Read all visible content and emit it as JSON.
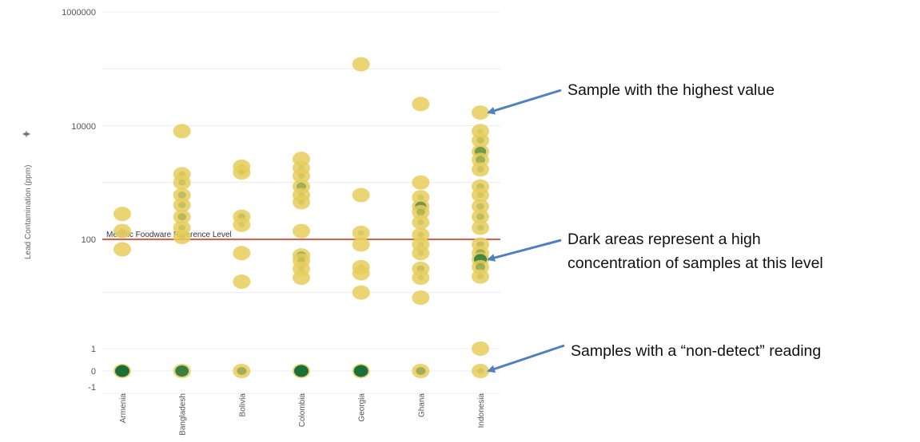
{
  "chart_data": {
    "type": "scatter",
    "ylabel": "Lead Contamination (ppm)",
    "y_scale": "log with separate linear band for -1 to 1",
    "y_ticks_log": [
      "1000000",
      "10000",
      "100"
    ],
    "y_ticks_linear": [
      "1",
      "0",
      "-1"
    ],
    "categories": [
      "Armenia",
      "Bangladesh",
      "Bolivia",
      "Colombia",
      "Georgia",
      "Ghana",
      "Indonesia"
    ],
    "reference_line": {
      "label": "Metallic Foodware Reference Level",
      "value": 100,
      "color": "#e8432a"
    },
    "points": [
      {
        "x": "Armenia",
        "y": 280,
        "density": 0.1
      },
      {
        "x": "Armenia",
        "y": 140,
        "density": 0.15
      },
      {
        "x": "Armenia",
        "y": 65,
        "density": 0.1
      },
      {
        "x": "Armenia",
        "y": 0,
        "density": 1.0
      },
      {
        "x": "Bangladesh",
        "y": 8000,
        "density": 0.1
      },
      {
        "x": "Bangladesh",
        "y": 1400,
        "density": 0.2
      },
      {
        "x": "Bangladesh",
        "y": 1000,
        "density": 0.25
      },
      {
        "x": "Bangladesh",
        "y": 600,
        "density": 0.35
      },
      {
        "x": "Bangladesh",
        "y": 400,
        "density": 0.3
      },
      {
        "x": "Bangladesh",
        "y": 250,
        "density": 0.4
      },
      {
        "x": "Bangladesh",
        "y": 160,
        "density": 0.25
      },
      {
        "x": "Bangladesh",
        "y": 110,
        "density": 0.15
      },
      {
        "x": "Bangladesh",
        "y": 0,
        "density": 0.9
      },
      {
        "x": "Bolivia",
        "y": 1900,
        "density": 0.15
      },
      {
        "x": "Bolivia",
        "y": 1500,
        "density": 0.15
      },
      {
        "x": "Bolivia",
        "y": 250,
        "density": 0.3
      },
      {
        "x": "Bolivia",
        "y": 180,
        "density": 0.15
      },
      {
        "x": "Bolivia",
        "y": 55,
        "density": 0.1
      },
      {
        "x": "Bolivia",
        "y": 16,
        "density": 0.1
      },
      {
        "x": "Bolivia",
        "y": 0,
        "density": 0.5
      },
      {
        "x": "Colombia",
        "y": 2600,
        "density": 0.1
      },
      {
        "x": "Colombia",
        "y": 1800,
        "density": 0.15
      },
      {
        "x": "Colombia",
        "y": 1300,
        "density": 0.2
      },
      {
        "x": "Colombia",
        "y": 850,
        "density": 0.5
      },
      {
        "x": "Colombia",
        "y": 600,
        "density": 0.2
      },
      {
        "x": "Colombia",
        "y": 450,
        "density": 0.15
      },
      {
        "x": "Colombia",
        "y": 140,
        "density": 0.1
      },
      {
        "x": "Colombia",
        "y": 50,
        "density": 0.5
      },
      {
        "x": "Colombia",
        "y": 40,
        "density": 0.3
      },
      {
        "x": "Colombia",
        "y": 28,
        "density": 0.15
      },
      {
        "x": "Colombia",
        "y": 19,
        "density": 0.1
      },
      {
        "x": "Colombia",
        "y": 0,
        "density": 1.0
      },
      {
        "x": "Georgia",
        "y": 120000,
        "density": 0.1
      },
      {
        "x": "Georgia",
        "y": 600,
        "density": 0.1
      },
      {
        "x": "Georgia",
        "y": 130,
        "density": 0.15
      },
      {
        "x": "Georgia",
        "y": 80,
        "density": 0.1
      },
      {
        "x": "Georgia",
        "y": 30,
        "density": 0.15
      },
      {
        "x": "Georgia",
        "y": 23,
        "density": 0.1
      },
      {
        "x": "Georgia",
        "y": 10,
        "density": 0.1
      },
      {
        "x": "Georgia",
        "y": 0,
        "density": 1.0
      },
      {
        "x": "Ghana",
        "y": 24000,
        "density": 0.1
      },
      {
        "x": "Ghana",
        "y": 1000,
        "density": 0.1
      },
      {
        "x": "Ghana",
        "y": 550,
        "density": 0.2
      },
      {
        "x": "Ghana",
        "y": 380,
        "density": 0.7
      },
      {
        "x": "Ghana",
        "y": 300,
        "density": 0.4
      },
      {
        "x": "Ghana",
        "y": 200,
        "density": 0.2
      },
      {
        "x": "Ghana",
        "y": 120,
        "density": 0.2
      },
      {
        "x": "Ghana",
        "y": 80,
        "density": 0.15
      },
      {
        "x": "Ghana",
        "y": 55,
        "density": 0.15
      },
      {
        "x": "Ghana",
        "y": 28,
        "density": 0.3
      },
      {
        "x": "Ghana",
        "y": 19,
        "density": 0.15
      },
      {
        "x": "Ghana",
        "y": 8,
        "density": 0.1
      },
      {
        "x": "Ghana",
        "y": 0,
        "density": 0.5
      },
      {
        "x": "Indonesia",
        "y": 17000,
        "density": 0.1
      },
      {
        "x": "Indonesia",
        "y": 8000,
        "density": 0.15
      },
      {
        "x": "Indonesia",
        "y": 5500,
        "density": 0.3
      },
      {
        "x": "Indonesia",
        "y": 3500,
        "density": 0.7
      },
      {
        "x": "Indonesia",
        "y": 2500,
        "density": 0.5
      },
      {
        "x": "Indonesia",
        "y": 1700,
        "density": 0.25
      },
      {
        "x": "Indonesia",
        "y": 850,
        "density": 0.3
      },
      {
        "x": "Indonesia",
        "y": 600,
        "density": 0.2
      },
      {
        "x": "Indonesia",
        "y": 380,
        "density": 0.3
      },
      {
        "x": "Indonesia",
        "y": 250,
        "density": 0.35
      },
      {
        "x": "Indonesia",
        "y": 160,
        "density": 0.25
      },
      {
        "x": "Indonesia",
        "y": 80,
        "density": 0.3
      },
      {
        "x": "Indonesia",
        "y": 55,
        "density": 0.5
      },
      {
        "x": "Indonesia",
        "y": 42,
        "density": 0.85
      },
      {
        "x": "Indonesia",
        "y": 30,
        "density": 0.5
      },
      {
        "x": "Indonesia",
        "y": 20,
        "density": 0.2
      },
      {
        "x": "Indonesia",
        "y": 1,
        "density": 0.1
      },
      {
        "x": "Indonesia",
        "y": 0,
        "density": 0.2
      }
    ]
  },
  "annotations": [
    {
      "id": "highest",
      "lines": [
        "Sample with the highest value"
      ],
      "target": {
        "x": "Indonesia",
        "y": 17000
      }
    },
    {
      "id": "dark",
      "lines": [
        "Dark areas represent a high",
        "concentration of samples at this level"
      ],
      "target": {
        "x": "Indonesia",
        "y": 42
      }
    },
    {
      "id": "nondetect",
      "lines": [
        "Samples with a “non-detect” reading"
      ],
      "target": {
        "x": "Indonesia",
        "y": 0
      }
    }
  ],
  "colors": {
    "dot_light": "#e6cc5a",
    "dot_dark": "#0e6a37",
    "arrow": "#4f81bd",
    "grid": "#ececec"
  }
}
